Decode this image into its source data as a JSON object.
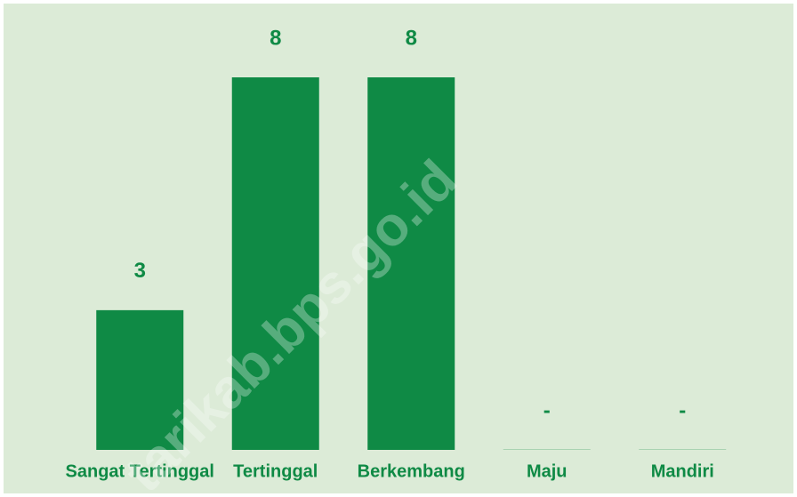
{
  "chart_data": {
    "type": "bar",
    "categories": [
      "Sangat Tertinggal",
      "Tertinggal",
      "Berkembang",
      "Maju",
      "Mandiri"
    ],
    "values": [
      3,
      8,
      8,
      0,
      0
    ],
    "value_labels": [
      "3",
      "8",
      "8",
      "-",
      "-"
    ],
    "color": "#0f8a45",
    "watermark": "tarikab.bps.go.id"
  }
}
